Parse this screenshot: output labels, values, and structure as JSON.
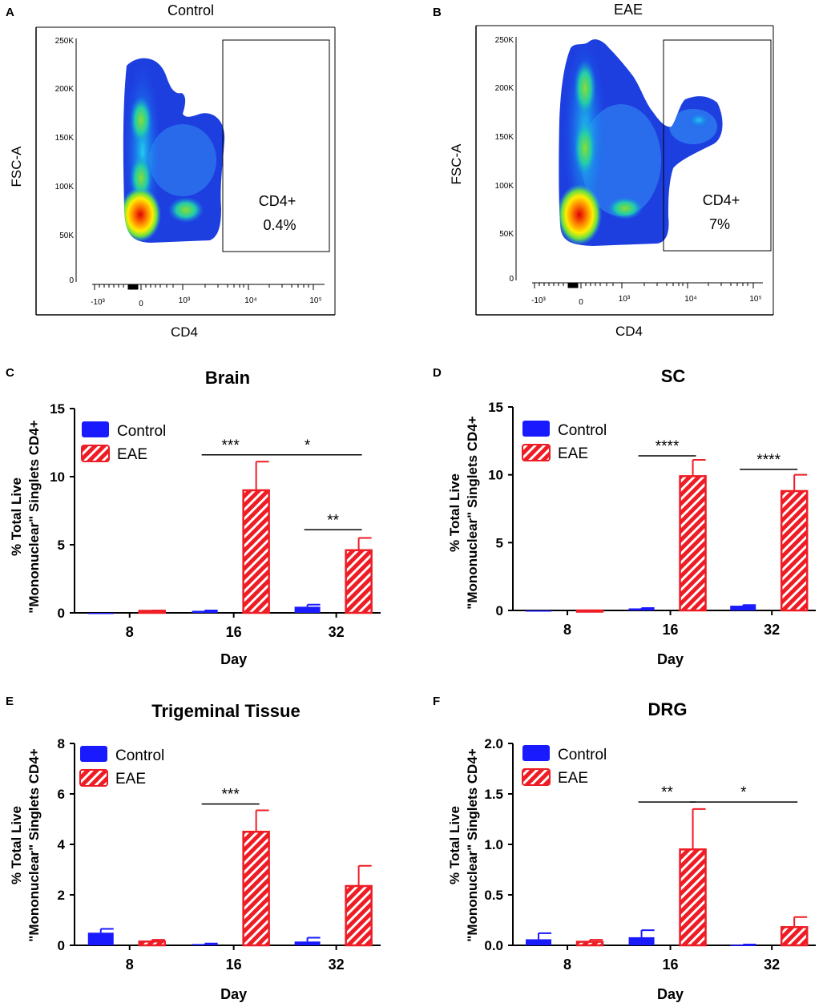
{
  "colors": {
    "control": "#1a1aff",
    "eae": "#ee1c24",
    "axis": "#000000"
  },
  "flow_panels": [
    {
      "letter": "A",
      "title": "Control",
      "xlabel": "CD4",
      "ylabel": "FSC-A",
      "y_ticks": [
        "250K",
        "200K",
        "150K",
        "100K",
        "50K",
        "0"
      ],
      "x_ticks": [
        "-10³",
        "0",
        "10³",
        "10⁴",
        "10⁵"
      ],
      "gate_label": "CD4+",
      "gate_value": "0.4%"
    },
    {
      "letter": "B",
      "title": "EAE",
      "xlabel": "CD4",
      "ylabel": "FSC-A",
      "y_ticks": [
        "250K",
        "200K",
        "150K",
        "100K",
        "50K",
        "0"
      ],
      "x_ticks": [
        "-10³",
        "0",
        "10³",
        "10⁴",
        "10⁵"
      ],
      "gate_label": "CD4+",
      "gate_value": "7%"
    }
  ],
  "chart_data": [
    {
      "panel": "C",
      "type": "bar",
      "title": "Brain",
      "xlabel": "Day",
      "ylabel_line1": "% Total Live",
      "ylabel_line2": "\"Mononuclear\" Singlets CD4+",
      "categories": [
        "8",
        "16",
        "32"
      ],
      "ylim": [
        0,
        15
      ],
      "yticks": [
        0,
        5,
        10,
        15
      ],
      "ytick_labels": [
        "0",
        "5",
        "10",
        "15"
      ],
      "series": [
        {
          "name": "Control",
          "values": [
            0.0,
            0.15,
            0.45
          ],
          "errors": [
            0.0,
            0.03,
            0.15
          ]
        },
        {
          "name": "EAE",
          "values": [
            0.15,
            9.0,
            4.6
          ],
          "errors": [
            0.03,
            2.1,
            0.9
          ]
        }
      ],
      "significance": [
        {
          "label": "***",
          "from": [
            1,
            0
          ],
          "to": [
            1,
            1
          ],
          "y": 11.6
        },
        {
          "label": "*",
          "from": [
            1,
            1
          ],
          "to": [
            2,
            1
          ],
          "y": 11.6
        },
        {
          "label": "**",
          "from": [
            2,
            0
          ],
          "to": [
            2,
            1
          ],
          "y": 6.1
        }
      ]
    },
    {
      "panel": "D",
      "type": "bar",
      "title": "SC",
      "xlabel": "Day",
      "ylabel_line1": "% Total Live",
      "ylabel_line2": "\"Mononuclear\" Singlets CD4+",
      "categories": [
        "8",
        "16",
        "32"
      ],
      "ylim": [
        0,
        15
      ],
      "yticks": [
        0,
        5,
        10,
        15
      ],
      "ytick_labels": [
        "0",
        "5",
        "10",
        "15"
      ],
      "series": [
        {
          "name": "Control",
          "values": [
            0.0,
            0.15,
            0.35
          ],
          "errors": [
            0.0,
            0.03,
            0.05
          ]
        },
        {
          "name": "EAE",
          "values": [
            0.0,
            9.9,
            8.8
          ],
          "errors": [
            0.0,
            1.2,
            1.2
          ]
        }
      ],
      "significance": [
        {
          "label": "****",
          "from": [
            1,
            0
          ],
          "to": [
            1,
            1
          ],
          "y": 11.4
        },
        {
          "label": "****",
          "from": [
            2,
            0
          ],
          "to": [
            2,
            1
          ],
          "y": 10.4
        }
      ]
    },
    {
      "panel": "E",
      "type": "bar",
      "title": "Trigeminal Tissue",
      "xlabel": "Day",
      "ylabel_line1": "% Total Live",
      "ylabel_line2": "\"Mononuclear\" Singlets CD4+",
      "categories": [
        "8",
        "16",
        "32"
      ],
      "ylim": [
        0,
        8
      ],
      "yticks": [
        0,
        2,
        4,
        6,
        8
      ],
      "ytick_labels": [
        "0",
        "2",
        "4",
        "6",
        "8"
      ],
      "series": [
        {
          "name": "Control",
          "values": [
            0.5,
            0.05,
            0.15
          ],
          "errors": [
            0.15,
            0.02,
            0.15
          ]
        },
        {
          "name": "EAE",
          "values": [
            0.15,
            4.5,
            2.35
          ],
          "errors": [
            0.07,
            0.85,
            0.8
          ]
        }
      ],
      "significance": [
        {
          "label": "***",
          "from": [
            1,
            0
          ],
          "to": [
            1,
            1
          ],
          "y": 5.6
        }
      ]
    },
    {
      "panel": "F",
      "type": "bar",
      "title": "DRG",
      "xlabel": "Day",
      "ylabel_line1": "% Total Live",
      "ylabel_line2": "\"Mononuclear\" Singlets CD4+",
      "categories": [
        "8",
        "16",
        "32"
      ],
      "ylim": [
        0,
        2
      ],
      "yticks": [
        0,
        0.5,
        1.0,
        1.5,
        2.0
      ],
      "ytick_labels": [
        "0.0",
        "0.5",
        "1.0",
        "1.5",
        "2.0"
      ],
      "series": [
        {
          "name": "Control",
          "values": [
            0.06,
            0.08,
            0.005
          ],
          "errors": [
            0.06,
            0.07,
            0.003
          ]
        },
        {
          "name": "EAE",
          "values": [
            0.035,
            0.95,
            0.18
          ],
          "errors": [
            0.02,
            0.4,
            0.1
          ]
        }
      ],
      "significance": [
        {
          "label": "**",
          "from": [
            1,
            0
          ],
          "to": [
            1,
            1
          ],
          "y": 1.42
        },
        {
          "label": "*",
          "from": [
            1,
            1
          ],
          "to": [
            2,
            1
          ],
          "y": 1.42
        }
      ]
    }
  ]
}
